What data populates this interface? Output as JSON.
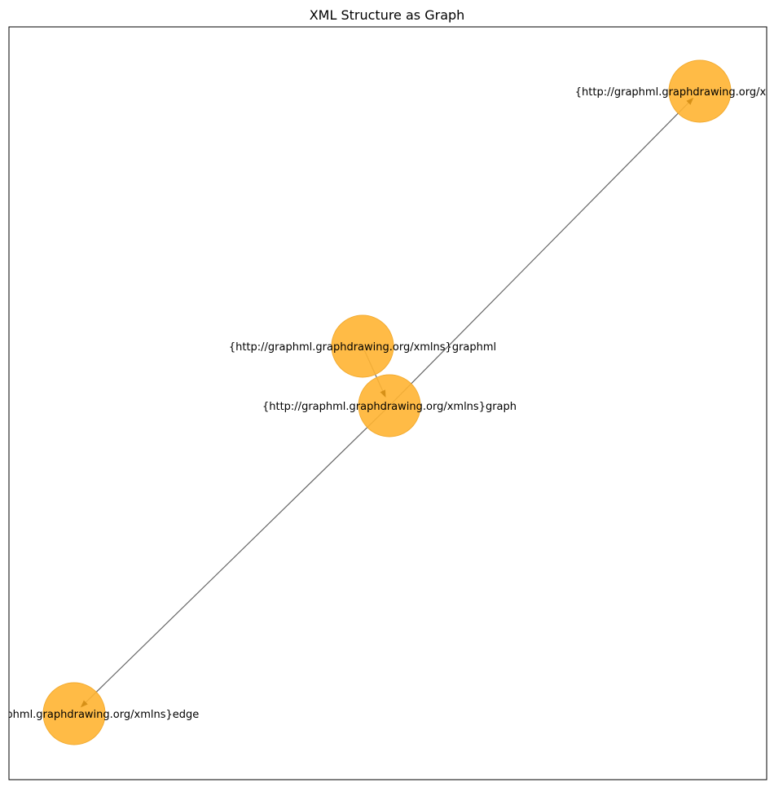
{
  "title": "XML Structure as Graph",
  "style": {
    "node_color": "#FFB432",
    "node_stroke": "#F2AA2E",
    "edge_color": "#666666",
    "arrow_color": "#D08A10"
  },
  "nodes": [
    {
      "id": "graphml",
      "label": "{http://graphml.graphdrawing.org/xmlns}graphml"
    },
    {
      "id": "graph",
      "label": "{http://graphml.graphdrawing.org/xmlns}graph"
    },
    {
      "id": "node",
      "label": "{http://graphml.graphdrawing.org/xmlns}node"
    },
    {
      "id": "edge",
      "label": "{http://graphml.graphdrawing.org/xmlns}edge"
    }
  ],
  "edges": [
    {
      "from": "graphml",
      "to": "graph"
    },
    {
      "from": "graph",
      "to": "node"
    },
    {
      "from": "graph",
      "to": "edge"
    }
  ]
}
